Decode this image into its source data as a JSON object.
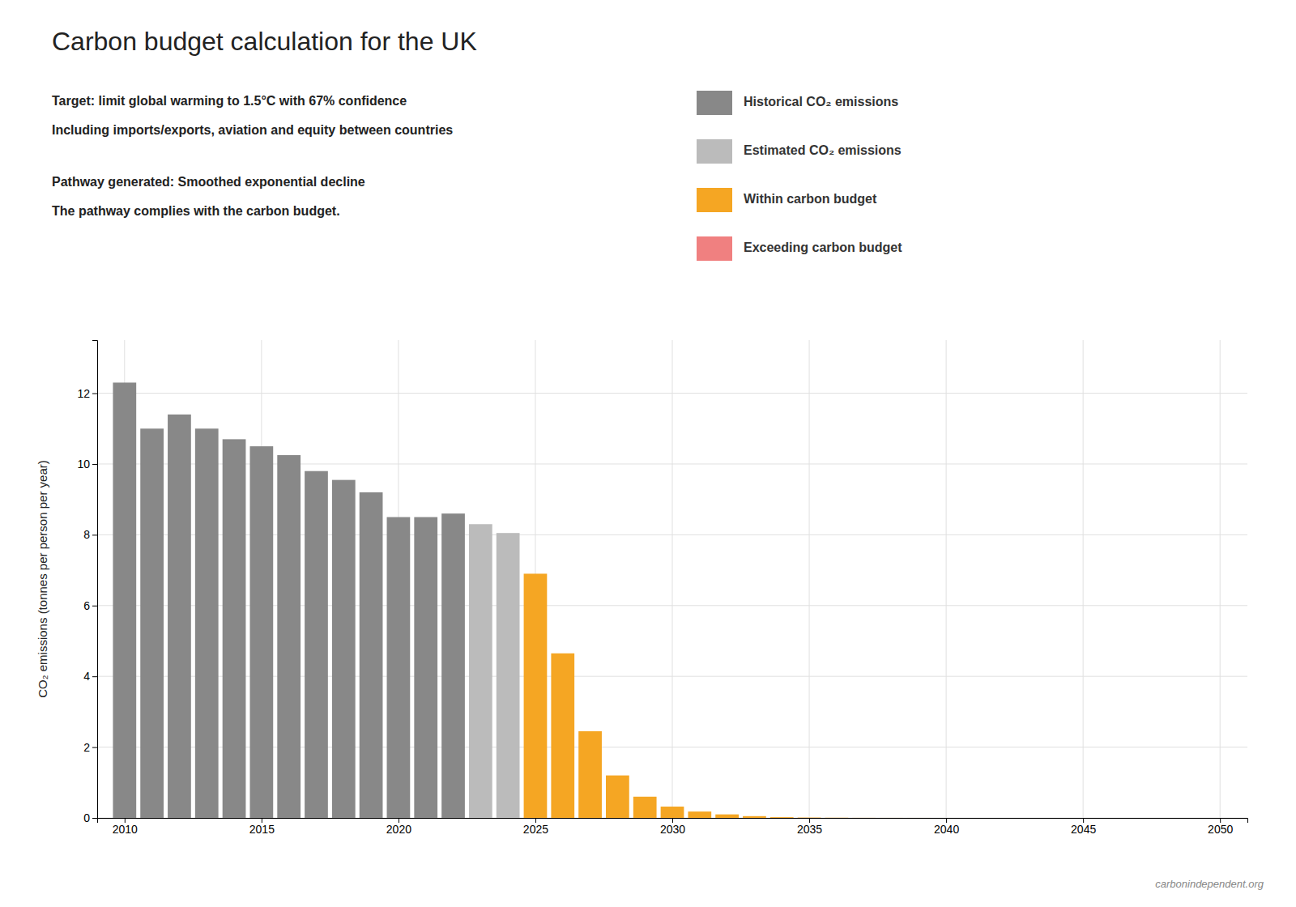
{
  "chart_data": {
    "type": "bar",
    "title": "Carbon budget calculation for the UK",
    "subtitle": [
      "Target: limit global warming to 1.5°C with 67% confidence",
      "Including imports/exports, aviation and equity between countries"
    ],
    "annotations": [
      "Pathway generated:  Smoothed exponential decline",
      "The pathway complies with the carbon budget.",
      "carbonindependent.org"
    ],
    "y_label": "CO₂ emissions (tonnes per person per year)",
    "x": [
      2010,
      2011,
      2012,
      2013,
      2014,
      2015,
      2016,
      2017,
      2018,
      2019,
      2020,
      2021,
      2022,
      2023,
      2024,
      2025,
      2026,
      2027,
      2028,
      2029,
      2030,
      2031,
      2032,
      2033,
      2034,
      2035,
      2036,
      2037,
      2038,
      2039,
      2040,
      2041,
      2042,
      2043,
      2044,
      2045,
      2046,
      2047,
      2048,
      2049,
      2050
    ],
    "series": [
      {
        "name": "Historical CO₂ emissions",
        "color": "#888888",
        "values": [
          12.3,
          11.0,
          11.4,
          11.0,
          10.7,
          10.5,
          10.25,
          9.8,
          9.55,
          9.2,
          8.5,
          8.5,
          8.6,
          null,
          null,
          null,
          null,
          null,
          null,
          null,
          null,
          null,
          null,
          null,
          null,
          null,
          null,
          null,
          null,
          null,
          null,
          null,
          null,
          null,
          null,
          null,
          null,
          null,
          null,
          null,
          null
        ]
      },
      {
        "name": "Estimated CO₂ emissions",
        "color": "#bbbbbb",
        "values": [
          null,
          null,
          null,
          null,
          null,
          null,
          null,
          null,
          null,
          null,
          null,
          null,
          null,
          8.3,
          8.05,
          null,
          null,
          null,
          null,
          null,
          null,
          null,
          null,
          null,
          null,
          null,
          null,
          null,
          null,
          null,
          null,
          null,
          null,
          null,
          null,
          null,
          null,
          null,
          null,
          null,
          null
        ]
      },
      {
        "name": "Within carbon budget",
        "color": "#f5a623",
        "values": [
          null,
          null,
          null,
          null,
          null,
          null,
          null,
          null,
          null,
          null,
          null,
          null,
          null,
          null,
          null,
          6.9,
          4.65,
          2.45,
          1.2,
          0.6,
          0.32,
          0.18,
          0.1,
          0.05,
          0.02,
          0.01,
          0.005,
          0.002,
          0.001,
          0.0005,
          0.0002,
          0.0001,
          5e-05,
          2e-05,
          1e-05,
          5e-06,
          2e-06,
          1e-06,
          5e-07,
          2e-07,
          1e-07
        ]
      },
      {
        "name": "Exceeding carbon budget",
        "color": "#f08080",
        "values": [
          null,
          null,
          null,
          null,
          null,
          null,
          null,
          null,
          null,
          null,
          null,
          null,
          null,
          null,
          null,
          null,
          null,
          null,
          null,
          null,
          null,
          null,
          null,
          null,
          null,
          null,
          null,
          null,
          null,
          null,
          null,
          null,
          null,
          null,
          null,
          null,
          null,
          null,
          null,
          null,
          null
        ]
      }
    ],
    "xlim": [
      2009.0,
      2051.0
    ],
    "ylim": [
      0,
      13.5
    ],
    "xticks": [
      2010,
      2015,
      2020,
      2025,
      2030,
      2035,
      2040,
      2045,
      2050
    ],
    "yticks": [
      0,
      2,
      4,
      6,
      8,
      10,
      12
    ],
    "grid": true
  }
}
